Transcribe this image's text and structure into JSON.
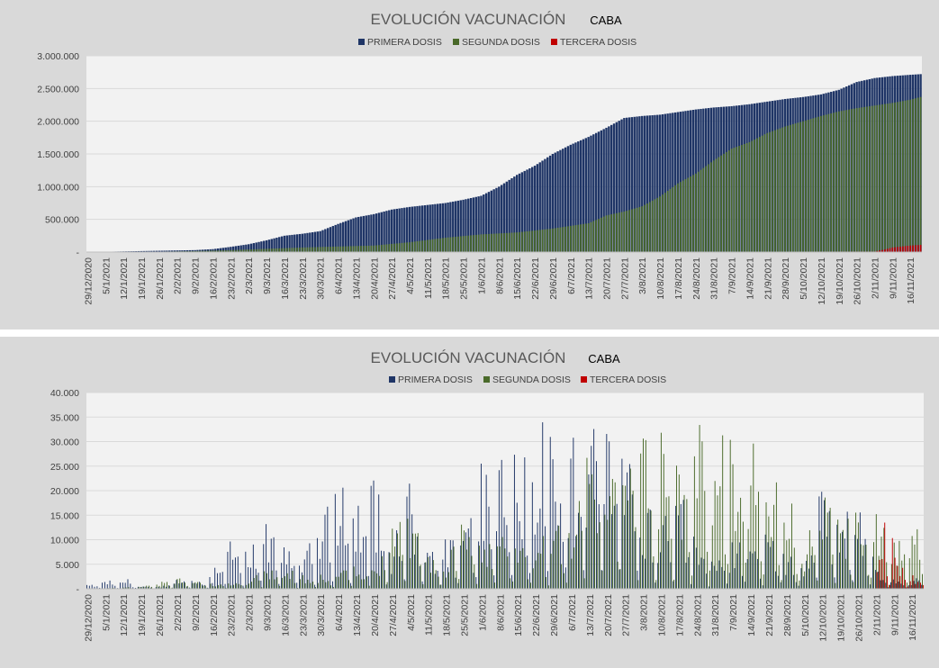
{
  "colors": {
    "primera": "#1f3566",
    "segunda": "#4a6a2a",
    "tercera": "#c00000",
    "plot_bg": "#f2f2f2",
    "panel_bg": "#d9d9d9"
  },
  "x_dates": [
    "29/12/2020",
    "5/1/2021",
    "12/1/2021",
    "19/1/2021",
    "26/1/2021",
    "2/2/2021",
    "9/2/2021",
    "16/2/2021",
    "23/2/2021",
    "2/3/2021",
    "9/3/2021",
    "16/3/2021",
    "23/3/2021",
    "30/3/2021",
    "6/4/2021",
    "13/4/2021",
    "20/4/2021",
    "27/4/2021",
    "4/5/2021",
    "11/5/2021",
    "18/5/2021",
    "25/5/2021",
    "1/6/2021",
    "8/6/2021",
    "15/6/2021",
    "22/6/2021",
    "29/6/2021",
    "6/7/2021",
    "13/7/2021",
    "20/7/2021",
    "27/7/2021",
    "3/8/2021",
    "10/8/2021",
    "17/8/2021",
    "24/8/2021",
    "31/8/2021",
    "7/9/2021",
    "14/9/2021",
    "21/9/2021",
    "28/9/2021",
    "5/10/2021",
    "12/10/2021",
    "19/10/2021",
    "26/10/2021",
    "2/11/2021",
    "9/11/2021",
    "16/11/2021"
  ],
  "chart_data": [
    {
      "type": "bar",
      "title": "EVOLUCIÓN VACUNACIÓN",
      "subtitle": "CABA",
      "legend": [
        "PRIMERA DOSIS",
        "SEGUNDA DOSIS",
        "TERCERA DOSIS"
      ],
      "legend_placement": "top",
      "y_ticks": [
        "3.000.000",
        "2.500.000",
        "2.000.000",
        "1.500.000",
        "1.000.000",
        "500.000",
        "-"
      ],
      "ylim": [
        0,
        3000000
      ],
      "grid": true,
      "x_start": "29/12/2020",
      "x_end": "20/11/2021",
      "series": [
        {
          "name": "PRIMERA DOSIS",
          "keyframes": [
            [
              "29/12/2020",
              0
            ],
            [
              "12/1/2021",
              10000
            ],
            [
              "26/1/2021",
              20000
            ],
            [
              "9/2/2021",
              30000
            ],
            [
              "16/2/2021",
              45000
            ],
            [
              "23/2/2021",
              80000
            ],
            [
              "2/3/2021",
              120000
            ],
            [
              "9/3/2021",
              180000
            ],
            [
              "16/3/2021",
              250000
            ],
            [
              "23/3/2021",
              280000
            ],
            [
              "30/3/2021",
              320000
            ],
            [
              "6/4/2021",
              430000
            ],
            [
              "13/4/2021",
              530000
            ],
            [
              "20/4/2021",
              580000
            ],
            [
              "27/4/2021",
              650000
            ],
            [
              "4/5/2021",
              690000
            ],
            [
              "11/5/2021",
              720000
            ],
            [
              "18/5/2021",
              750000
            ],
            [
              "25/5/2021",
              800000
            ],
            [
              "1/6/2021",
              860000
            ],
            [
              "8/6/2021",
              1000000
            ],
            [
              "15/6/2021",
              1180000
            ],
            [
              "22/6/2021",
              1320000
            ],
            [
              "29/6/2021",
              1500000
            ],
            [
              "6/7/2021",
              1640000
            ],
            [
              "13/7/2021",
              1760000
            ],
            [
              "20/7/2021",
              1900000
            ],
            [
              "27/7/2021",
              2050000
            ],
            [
              "3/8/2021",
              2080000
            ],
            [
              "10/8/2021",
              2100000
            ],
            [
              "17/8/2021",
              2140000
            ],
            [
              "24/8/2021",
              2180000
            ],
            [
              "31/8/2021",
              2210000
            ],
            [
              "7/9/2021",
              2230000
            ],
            [
              "14/9/2021",
              2260000
            ],
            [
              "21/9/2021",
              2300000
            ],
            [
              "28/9/2021",
              2340000
            ],
            [
              "5/10/2021",
              2370000
            ],
            [
              "12/10/2021",
              2410000
            ],
            [
              "19/10/2021",
              2480000
            ],
            [
              "26/10/2021",
              2600000
            ],
            [
              "2/11/2021",
              2660000
            ],
            [
              "9/11/2021",
              2690000
            ],
            [
              "16/11/2021",
              2710000
            ],
            [
              "20/11/2021",
              2720000
            ]
          ]
        },
        {
          "name": "SEGUNDA DOSIS",
          "keyframes": [
            [
              "29/12/2020",
              0
            ],
            [
              "19/1/2021",
              2000
            ],
            [
              "9/2/2021",
              15000
            ],
            [
              "23/2/2021",
              30000
            ],
            [
              "9/3/2021",
              50000
            ],
            [
              "23/3/2021",
              70000
            ],
            [
              "6/4/2021",
              85000
            ],
            [
              "20/4/2021",
              100000
            ],
            [
              "4/5/2021",
              150000
            ],
            [
              "18/5/2021",
              220000
            ],
            [
              "1/6/2021",
              270000
            ],
            [
              "15/6/2021",
              300000
            ],
            [
              "29/6/2021",
              360000
            ],
            [
              "13/7/2021",
              440000
            ],
            [
              "20/7/2021",
              560000
            ],
            [
              "27/7/2021",
              620000
            ],
            [
              "3/8/2021",
              700000
            ],
            [
              "10/8/2021",
              850000
            ],
            [
              "17/8/2021",
              1050000
            ],
            [
              "24/8/2021",
              1200000
            ],
            [
              "31/8/2021",
              1400000
            ],
            [
              "7/9/2021",
              1580000
            ],
            [
              "14/9/2021",
              1680000
            ],
            [
              "21/9/2021",
              1820000
            ],
            [
              "28/9/2021",
              1920000
            ],
            [
              "5/10/2021",
              2000000
            ],
            [
              "12/10/2021",
              2080000
            ],
            [
              "19/10/2021",
              2150000
            ],
            [
              "26/10/2021",
              2200000
            ],
            [
              "2/11/2021",
              2240000
            ],
            [
              "9/11/2021",
              2280000
            ],
            [
              "16/11/2021",
              2330000
            ],
            [
              "20/11/2021",
              2370000
            ]
          ]
        },
        {
          "name": "TERCERA DOSIS",
          "keyframes": [
            [
              "29/12/2020",
              0
            ],
            [
              "29/6/2021",
              0
            ],
            [
              "2/7/2021",
              3000
            ],
            [
              "2/11/2021",
              8000
            ],
            [
              "6/11/2021",
              40000
            ],
            [
              "9/11/2021",
              70000
            ],
            [
              "16/11/2021",
              100000
            ],
            [
              "20/11/2021",
              110000
            ]
          ]
        }
      ]
    },
    {
      "type": "bar",
      "title": "EVOLUCIÓN VACUNACIÓN",
      "subtitle": "CABA",
      "legend": [
        "PRIMERA DOSIS",
        "SEGUNDA DOSIS",
        "TERCERA DOSIS"
      ],
      "legend_placement": "top",
      "y_ticks": [
        "40.000",
        "35.000",
        "30.000",
        "25.000",
        "20.000",
        "15.000",
        "10.000",
        "5.000",
        "-"
      ],
      "ylim": [
        0,
        40000
      ],
      "grid": true,
      "x_start": "29/12/2020",
      "x_end": "20/11/2021",
      "series": [
        {
          "name": "PRIMERA DOSIS",
          "envelope": [
            [
              "29/12/2020",
              800
            ],
            [
              "5/1/2021",
              1500
            ],
            [
              "12/1/2021",
              2500
            ],
            [
              "19/1/2021",
              800
            ],
            [
              "26/1/2021",
              500
            ],
            [
              "2/2/2021",
              2000
            ],
            [
              "9/2/2021",
              1500
            ],
            [
              "16/2/2021",
              3000
            ],
            [
              "23/2/2021",
              9500
            ],
            [
              "2/3/2021",
              8000
            ],
            [
              "9/3/2021",
              13000
            ],
            [
              "16/3/2021",
              11000
            ],
            [
              "23/3/2021",
              7000
            ],
            [
              "30/3/2021",
              12000
            ],
            [
              "6/4/2021",
              20000
            ],
            [
              "13/4/2021",
              16000
            ],
            [
              "20/4/2021",
              23000
            ],
            [
              "27/4/2021",
              8000
            ],
            [
              "4/5/2021",
              22000
            ],
            [
              "11/5/2021",
              7000
            ],
            [
              "18/5/2021",
              10000
            ],
            [
              "25/5/2021",
              9000
            ],
            [
              "1/6/2021",
              25000
            ],
            [
              "8/6/2021",
              29000
            ],
            [
              "15/6/2021",
              26000
            ],
            [
              "22/6/2021",
              30000
            ],
            [
              "29/6/2021",
              34000
            ],
            [
              "6/7/2021",
              28000
            ],
            [
              "13/7/2021",
              30000
            ],
            [
              "20/7/2021",
              35000
            ],
            [
              "27/7/2021",
              34000
            ],
            [
              "3/8/2021",
              18000
            ],
            [
              "10/8/2021",
              12000
            ],
            [
              "17/8/2021",
              20000
            ],
            [
              "24/8/2021",
              8000
            ],
            [
              "31/8/2021",
              6000
            ],
            [
              "7/9/2021",
              9000
            ],
            [
              "14/9/2021",
              12000
            ],
            [
              "21/9/2021",
              10000
            ],
            [
              "28/9/2021",
              8000
            ],
            [
              "5/10/2021",
              6000
            ],
            [
              "12/10/2021",
              20000
            ],
            [
              "19/10/2021",
              15000
            ],
            [
              "26/10/2021",
              18000
            ],
            [
              "2/11/2021",
              5000
            ],
            [
              "9/11/2021",
              2000
            ],
            [
              "16/11/2021",
              2000
            ],
            [
              "20/11/2021",
              2000
            ]
          ]
        },
        {
          "name": "SEGUNDA DOSIS",
          "envelope": [
            [
              "29/12/2020",
              0
            ],
            [
              "19/1/2021",
              400
            ],
            [
              "26/1/2021",
              1200
            ],
            [
              "2/2/2021",
              2000
            ],
            [
              "9/2/2021",
              1500
            ],
            [
              "16/2/2021",
              1000
            ],
            [
              "23/2/2021",
              1500
            ],
            [
              "2/3/2021",
              2000
            ],
            [
              "9/3/2021",
              4000
            ],
            [
              "16/3/2021",
              4500
            ],
            [
              "23/3/2021",
              3000
            ],
            [
              "30/3/2021",
              3000
            ],
            [
              "6/4/2021",
              3000
            ],
            [
              "13/4/2021",
              4500
            ],
            [
              "20/4/2021",
              5000
            ],
            [
              "27/4/2021",
              12000
            ],
            [
              "4/5/2021",
              15000
            ],
            [
              "11/5/2021",
              6000
            ],
            [
              "18/5/2021",
              5000
            ],
            [
              "25/5/2021",
              15000
            ],
            [
              "1/6/2021",
              8000
            ],
            [
              "8/6/2021",
              10000
            ],
            [
              "15/6/2021",
              12000
            ],
            [
              "22/6/2021",
              10000
            ],
            [
              "29/6/2021",
              12000
            ],
            [
              "6/7/2021",
              15000
            ],
            [
              "13/7/2021",
              28000
            ],
            [
              "20/7/2021",
              25000
            ],
            [
              "27/7/2021",
              28000
            ],
            [
              "3/8/2021",
              30000
            ],
            [
              "10/8/2021",
              32000
            ],
            [
              "17/8/2021",
              26000
            ],
            [
              "24/8/2021",
              30000
            ],
            [
              "31/8/2021",
              33000
            ],
            [
              "7/9/2021",
              32000
            ],
            [
              "14/9/2021",
              33000
            ],
            [
              "21/9/2021",
              22000
            ],
            [
              "28/9/2021",
              20000
            ],
            [
              "5/10/2021",
              8000
            ],
            [
              "12/10/2021",
              18000
            ],
            [
              "19/10/2021",
              15000
            ],
            [
              "26/10/2021",
              16000
            ],
            [
              "2/11/2021",
              14000
            ],
            [
              "9/11/2021",
              10000
            ],
            [
              "16/11/2021",
              17000
            ],
            [
              "20/11/2021",
              16000
            ]
          ]
        },
        {
          "name": "TERCERA DOSIS",
          "envelope": [
            [
              "29/12/2020",
              0
            ],
            [
              "1/11/2021",
              0
            ],
            [
              "2/11/2021",
              9000
            ],
            [
              "5/11/2021",
              15000
            ],
            [
              "9/11/2021",
              9000
            ],
            [
              "12/11/2021",
              5000
            ],
            [
              "16/11/2021",
              2500
            ],
            [
              "20/11/2021",
              2500
            ]
          ]
        }
      ]
    }
  ]
}
